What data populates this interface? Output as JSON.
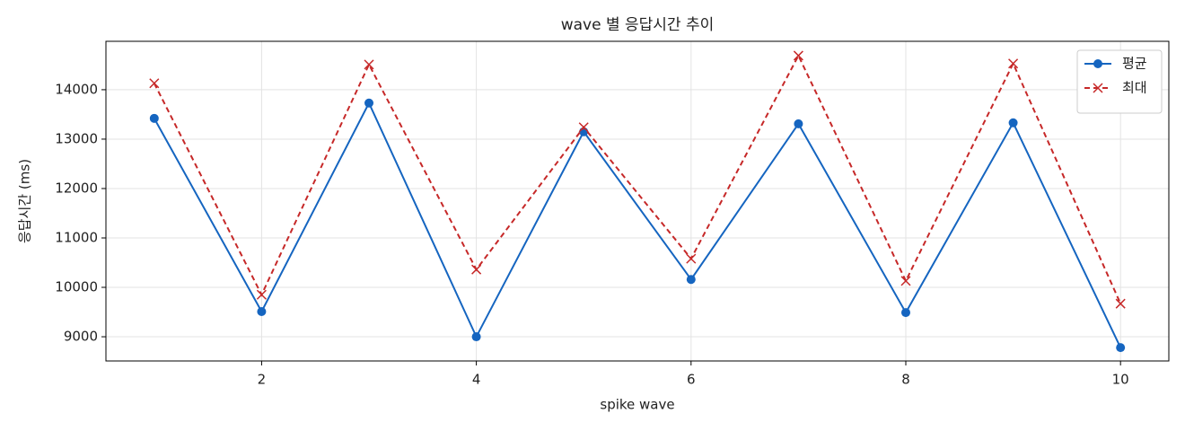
{
  "chart_data": {
    "type": "line",
    "title": "wave 별 응답시간 추이",
    "x_label": "spike wave",
    "y_label": "응답시간 (ms)",
    "x": [
      1,
      2,
      3,
      4,
      5,
      6,
      7,
      8,
      9,
      10
    ],
    "series": [
      {
        "name": "평균",
        "color": "#1565c0",
        "marker": "o",
        "linestyle": "solid",
        "values": [
          13420,
          9510,
          13730,
          9000,
          13150,
          10160,
          13310,
          9490,
          13330,
          8780
        ]
      },
      {
        "name": "최대",
        "color": "#c62828",
        "marker": "x",
        "linestyle": "dashed",
        "values": [
          14130,
          9850,
          14510,
          10360,
          13240,
          10580,
          14690,
          10130,
          14530,
          9670
        ]
      }
    ],
    "xlim": [
      0.55,
      10.45
    ],
    "xticks": [
      2,
      4,
      6,
      8,
      10
    ],
    "ylim": [
      8510,
      14980
    ],
    "yticks": [
      9000,
      10000,
      11000,
      12000,
      13000,
      14000
    ],
    "grid": true,
    "legend": "upper right"
  }
}
